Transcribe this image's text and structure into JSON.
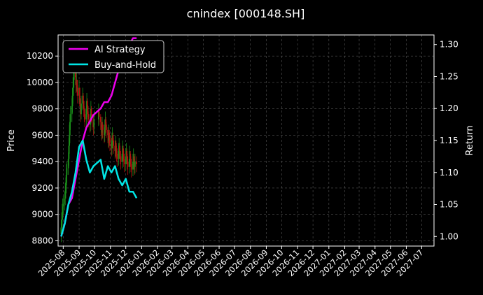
{
  "chart_data": {
    "type": "line",
    "title": "cnindex [000148.SH]",
    "xlabel": "",
    "ylabel": "Price",
    "ylabel_right": "Return",
    "ylim": [
      8760,
      10360
    ],
    "ylim_right": [
      0.985,
      1.315
    ],
    "grid": true,
    "legend_position": "top-left",
    "x_ticks": [
      "2025-08",
      "2025-09",
      "2025-10",
      "2025-11",
      "2025-12",
      "2026-01",
      "2026-02",
      "2026-03",
      "2026-04",
      "2026-05",
      "2026-06",
      "2026-07",
      "2026-08",
      "2026-09",
      "2026-10",
      "2026-11",
      "2026-12",
      "2027-01",
      "2027-02",
      "2027-03",
      "2027-04",
      "2027-05",
      "2027-06",
      "2027-07"
    ],
    "y_ticks": [
      8800,
      9000,
      9200,
      9400,
      9600,
      9800,
      10000,
      10200
    ],
    "y_ticks_right": [
      1.0,
      1.05,
      1.1,
      1.15,
      1.2,
      1.25,
      1.3
    ],
    "colors": {
      "up": "#1a8f1a",
      "down": "#b01010",
      "ai": "#ee00ee",
      "bh": "#00e5e5",
      "grid": "#555555"
    },
    "candles": {
      "dates": [
        "2025-07-28",
        "2025-07-29",
        "2025-07-30",
        "2025-07-31",
        "2025-08-01",
        "2025-08-04",
        "2025-08-05",
        "2025-08-06",
        "2025-08-07",
        "2025-08-08",
        "2025-08-11",
        "2025-08-12",
        "2025-08-13",
        "2025-08-14",
        "2025-08-15",
        "2025-08-18",
        "2025-08-19",
        "2025-08-20",
        "2025-08-21",
        "2025-08-22",
        "2025-08-25",
        "2025-08-26",
        "2025-08-27",
        "2025-08-28",
        "2025-08-29",
        "2025-09-01",
        "2025-09-02",
        "2025-09-03",
        "2025-09-04",
        "2025-09-05",
        "2025-09-08",
        "2025-09-09",
        "2025-09-10",
        "2025-09-11",
        "2025-09-12",
        "2025-09-15",
        "2025-09-16",
        "2025-09-17",
        "2025-09-18",
        "2025-09-19",
        "2025-09-22",
        "2025-09-23",
        "2025-09-24",
        "2025-09-25",
        "2025-09-26",
        "2025-09-29",
        "2025-09-30",
        "2025-10-09",
        "2025-10-10",
        "2025-10-13",
        "2025-10-14",
        "2025-10-15",
        "2025-10-16",
        "2025-10-17",
        "2025-10-20",
        "2025-10-21",
        "2025-10-22",
        "2025-10-23",
        "2025-10-24",
        "2025-10-27",
        "2025-10-28",
        "2025-10-29",
        "2025-10-30",
        "2025-10-31",
        "2025-11-03",
        "2025-11-04",
        "2025-11-05",
        "2025-11-06",
        "2025-11-07",
        "2025-11-10",
        "2025-11-11",
        "2025-11-12",
        "2025-11-13",
        "2025-11-14",
        "2025-11-17",
        "2025-11-18",
        "2025-11-19",
        "2025-11-20",
        "2025-11-21",
        "2025-11-24",
        "2025-11-25",
        "2025-11-26",
        "2025-11-27",
        "2025-11-28",
        "2025-12-01",
        "2025-12-02",
        "2025-12-03",
        "2025-12-04",
        "2025-12-05",
        "2025-12-08",
        "2025-12-09",
        "2025-12-10",
        "2025-12-11",
        "2025-12-12",
        "2025-12-15",
        "2025-12-16",
        "2025-12-17",
        "2025-12-18",
        "2025-12-19",
        "2025-12-22"
      ],
      "open": [
        8850,
        8900,
        8960,
        9020,
        9060,
        9080,
        9120,
        9180,
        9220,
        9300,
        9350,
        9420,
        9520,
        9600,
        9700,
        9760,
        9820,
        9900,
        9960,
        10020,
        10080,
        10040,
        9980,
        10020,
        9960,
        9900,
        9960,
        9880,
        9820,
        9760,
        9840,
        9900,
        9860,
        9800,
        9760,
        9720,
        9800,
        9860,
        9820,
        9760,
        9720,
        9680,
        9740,
        9800,
        9760,
        9700,
        9660,
        9720,
        9780,
        9740,
        9700,
        9660,
        9620,
        9680,
        9640,
        9600,
        9660,
        9720,
        9680,
        9640,
        9600,
        9560,
        9620,
        9580,
        9540,
        9500,
        9560,
        9600,
        9560,
        9520,
        9480,
        9540,
        9500,
        9460,
        9420,
        9480,
        9520,
        9480,
        9440,
        9400,
        9460,
        9500,
        9460,
        9420,
        9380,
        9440,
        9480,
        9440,
        9400,
        9360,
        9420,
        9460,
        9420,
        9380,
        9340,
        9400,
        9440,
        9400,
        9360,
        9400
      ],
      "close": [
        8900,
        8960,
        9020,
        9060,
        9080,
        9120,
        9180,
        9220,
        9300,
        9350,
        9420,
        9520,
        9600,
        9700,
        9760,
        9820,
        9900,
        9960,
        10020,
        10080,
        10040,
        9980,
        10020,
        9960,
        9900,
        9960,
        9880,
        9820,
        9760,
        9840,
        9900,
        9860,
        9800,
        9760,
        9720,
        9800,
        9860,
        9820,
        9760,
        9720,
        9680,
        9740,
        9800,
        9760,
        9700,
        9660,
        9720,
        9780,
        9740,
        9700,
        9660,
        9620,
        9680,
        9640,
        9600,
        9660,
        9720,
        9680,
        9640,
        9600,
        9560,
        9620,
        9580,
        9540,
        9500,
        9560,
        9600,
        9560,
        9520,
        9480,
        9540,
        9500,
        9460,
        9420,
        9480,
        9520,
        9480,
        9440,
        9400,
        9460,
        9500,
        9460,
        9420,
        9380,
        9440,
        9480,
        9440,
        9400,
        9360,
        9420,
        9460,
        9420,
        9380,
        9340,
        9400,
        9440,
        9400,
        9360,
        9400,
        9380
      ],
      "high": [
        8960,
        9010,
        9080,
        9120,
        9140,
        9170,
        9240,
        9280,
        9380,
        9400,
        9470,
        9580,
        9680,
        9760,
        9820,
        9880,
        9960,
        10040,
        10100,
        10160,
        10120,
        10060,
        10080,
        10020,
        9980,
        10020,
        9950,
        9880,
        9830,
        9900,
        9960,
        9920,
        9860,
        9820,
        9800,
        9860,
        9920,
        9880,
        9830,
        9780,
        9760,
        9800,
        9860,
        9820,
        9760,
        9740,
        9780,
        9840,
        9800,
        9760,
        9720,
        9700,
        9740,
        9700,
        9680,
        9720,
        9780,
        9740,
        9700,
        9660,
        9640,
        9680,
        9640,
        9600,
        9580,
        9620,
        9660,
        9620,
        9580,
        9560,
        9600,
        9560,
        9520,
        9500,
        9540,
        9580,
        9540,
        9500,
        9480,
        9520,
        9560,
        9520,
        9480,
        9460,
        9500,
        9540,
        9500,
        9460,
        9440,
        9480,
        9520,
        9480,
        9440,
        9420,
        9460,
        9500,
        9460,
        9420,
        9460,
        9440
      ],
      "low": [
        8790,
        8840,
        8900,
        8960,
        9000,
        9030,
        9070,
        9120,
        9160,
        9240,
        9300,
        9370,
        9460,
        9540,
        9640,
        9700,
        9770,
        9840,
        9900,
        9960,
        9980,
        9920,
        9930,
        9900,
        9840,
        9850,
        9820,
        9760,
        9700,
        9720,
        9790,
        9800,
        9740,
        9700,
        9660,
        9660,
        9740,
        9760,
        9700,
        9660,
        9620,
        9630,
        9690,
        9700,
        9640,
        9600,
        9610,
        9670,
        9680,
        9640,
        9600,
        9560,
        9570,
        9580,
        9540,
        9550,
        9610,
        9620,
        9580,
        9540,
        9500,
        9510,
        9520,
        9480,
        9440,
        9450,
        9500,
        9500,
        9460,
        9420,
        9430,
        9440,
        9400,
        9360,
        9370,
        9420,
        9420,
        9380,
        9340,
        9350,
        9400,
        9400,
        9360,
        9320,
        9330,
        9380,
        9380,
        9340,
        9300,
        9310,
        9360,
        9360,
        9320,
        9280,
        9290,
        9340,
        9340,
        9300,
        9310,
        9320
      ]
    },
    "series": [
      {
        "name": "AI Strategy",
        "x": [
          "2025-07-28",
          "2025-08-04",
          "2025-08-11",
          "2025-08-18",
          "2025-08-25",
          "2025-09-01",
          "2025-09-08",
          "2025-09-15",
          "2025-09-22",
          "2025-09-29",
          "2025-10-13",
          "2025-10-20",
          "2025-10-27",
          "2025-11-03",
          "2025-11-10",
          "2025-11-17",
          "2025-11-24",
          "2025-12-01",
          "2025-12-08",
          "2025-12-15",
          "2025-12-22"
        ],
        "values": [
          1.0,
          1.02,
          1.05,
          1.06,
          1.09,
          1.12,
          1.15,
          1.17,
          1.18,
          1.19,
          1.2,
          1.21,
          1.21,
          1.22,
          1.24,
          1.26,
          1.28,
          1.29,
          1.3,
          1.31,
          1.31
        ]
      },
      {
        "name": "Buy-and-Hold",
        "x": [
          "2025-07-28",
          "2025-08-04",
          "2025-08-11",
          "2025-08-18",
          "2025-08-25",
          "2025-09-01",
          "2025-09-08",
          "2025-09-15",
          "2025-09-22",
          "2025-09-29",
          "2025-10-13",
          "2025-10-20",
          "2025-10-27",
          "2025-11-03",
          "2025-11-10",
          "2025-11-17",
          "2025-11-24",
          "2025-12-01",
          "2025-12-08",
          "2025-12-15",
          "2025-12-22"
        ],
        "values": [
          1.0,
          1.02,
          1.05,
          1.07,
          1.1,
          1.14,
          1.15,
          1.12,
          1.1,
          1.11,
          1.12,
          1.09,
          1.11,
          1.1,
          1.11,
          1.09,
          1.08,
          1.09,
          1.07,
          1.07,
          1.06
        ]
      }
    ]
  }
}
